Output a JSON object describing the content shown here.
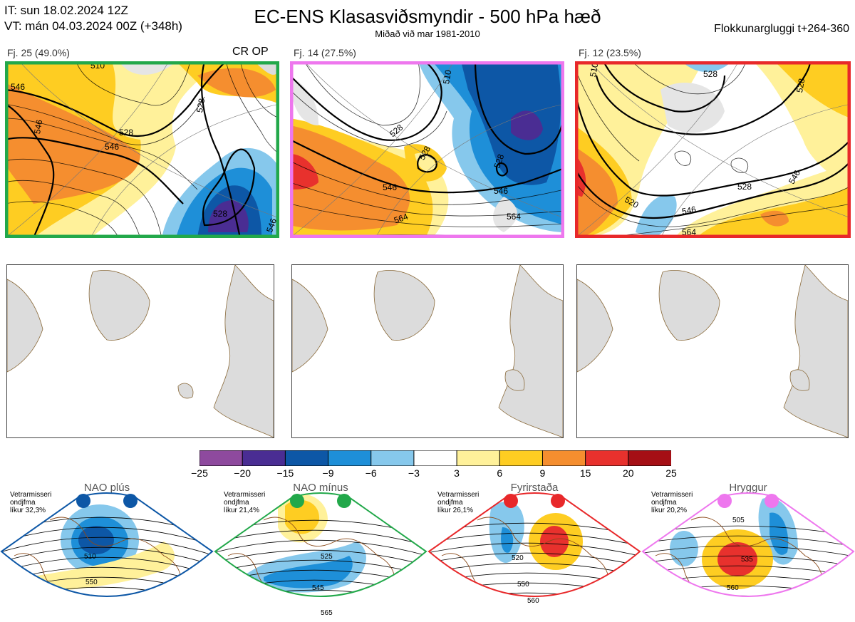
{
  "header": {
    "init_time": "IT: sun 18.02.2024 12Z",
    "valid_time": "VT: mán 04.03.2024 00Z  (+348h)",
    "title": "EC-ENS Klasasviðsmyndir - 500 hPa hæð",
    "subtitle": "Miðað við mar 1981-2010",
    "window": "Flokkunargluggi t+264-360"
  },
  "clusters": [
    {
      "label": "Fj. 25 (49.0%)",
      "members": 25,
      "percent": 49.0,
      "border_color": "#22a84a",
      "tag": "CR OP",
      "contour_labels": [
        "546",
        "546",
        "528",
        "546",
        "528",
        "528",
        "546",
        "510"
      ]
    },
    {
      "label": "Fj. 14 (27.5%)",
      "members": 14,
      "percent": 27.5,
      "border_color": "#ee77ee",
      "contour_labels": [
        "528",
        "528",
        "546",
        "564",
        "528",
        "546",
        "564",
        "510"
      ]
    },
    {
      "label": "Fj. 12 (23.5%)",
      "members": 12,
      "percent": 23.5,
      "border_color": "#e8282a",
      "contour_labels": [
        "510",
        "528",
        "546",
        "528",
        "520",
        "546",
        "564",
        "528"
      ]
    }
  ],
  "colorbar": {
    "ticks": [
      "−25",
      "−20",
      "−15",
      "−9",
      "−6",
      "−3",
      "3",
      "6",
      "9",
      "15",
      "20",
      "25"
    ],
    "colors": [
      "#8e4a9e",
      "#4a2d93",
      "#0d57a6",
      "#1e8fd8",
      "#86c8ec",
      "#ffffff",
      "#fff19a",
      "#fecd22",
      "#f58e2f",
      "#e8312d",
      "#a50f15"
    ]
  },
  "regimes": [
    {
      "name": "NAO plús",
      "note_lines": [
        "Vetrarmisseri",
        "ondjfma",
        "líkur 32,3%"
      ],
      "color": "#0d57a6",
      "labels": [
        "510",
        "550"
      ]
    },
    {
      "name": "NAO mínus",
      "note_lines": [
        "Vetrarmisseri",
        "ondjfma",
        "líkur 21,4%"
      ],
      "color": "#22a84a",
      "labels": [
        "525",
        "545",
        "565"
      ]
    },
    {
      "name": "Fyrirstaða",
      "note_lines": [
        "Vetrarmisseri",
        "ondjfma",
        "líkur 26,1%"
      ],
      "color": "#e8282a",
      "labels": [
        "520",
        "550",
        "560"
      ]
    },
    {
      "name": "Hryggur",
      "note_lines": [
        "Vetrarmisseri",
        "ondjfma",
        "líkur 20,2%"
      ],
      "color": "#ee77ee",
      "labels": [
        "505",
        "535",
        "560"
      ]
    }
  ]
}
